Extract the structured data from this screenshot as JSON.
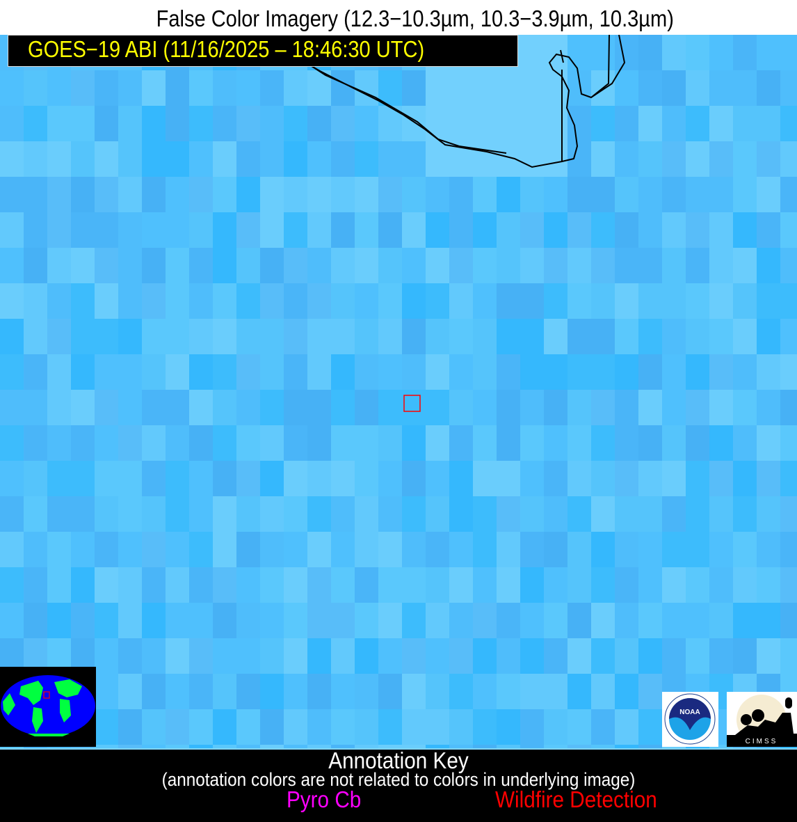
{
  "header": {
    "title": "False Color Imagery (12.3−10.3µm, 10.3−3.9µm, 10.3µm)",
    "satellite_label": "GOES−19 ABI (11/16/2025 – 18:46:30 UTC)"
  },
  "imagery": {
    "base_color": "#55c4fb",
    "coastline_color": "#000000",
    "detection_box_color": "#ff0000"
  },
  "inset_map": {
    "land_color": "#00ff40",
    "ocean_color": "#0000ff",
    "region_box_color": "#ff0000"
  },
  "logos": {
    "noaa": "NOAA",
    "cimss": "CIMSS"
  },
  "annotation_key": {
    "title": "Annotation Key",
    "subtitle": "(annotation colors are not related to colors in underlying image)",
    "items": [
      {
        "label": "Pyro Cb",
        "color": "#ff00ff"
      },
      {
        "label": "Wildfire Detection",
        "color": "#ff0000"
      }
    ]
  }
}
